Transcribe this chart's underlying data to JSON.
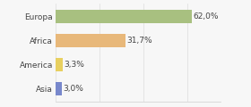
{
  "categories": [
    "Europa",
    "Africa",
    "America",
    "Asia"
  ],
  "values": [
    62.0,
    31.7,
    3.3,
    3.0
  ],
  "labels": [
    "62,0%",
    "31,7%",
    "3,3%",
    "3,0%"
  ],
  "bar_colors": [
    "#a8c080",
    "#e8b87a",
    "#e8d060",
    "#7888cc"
  ],
  "background_color": "#f7f7f7",
  "xlim": [
    0,
    75
  ],
  "bar_height": 0.55,
  "label_fontsize": 6.5,
  "category_fontsize": 6.5
}
